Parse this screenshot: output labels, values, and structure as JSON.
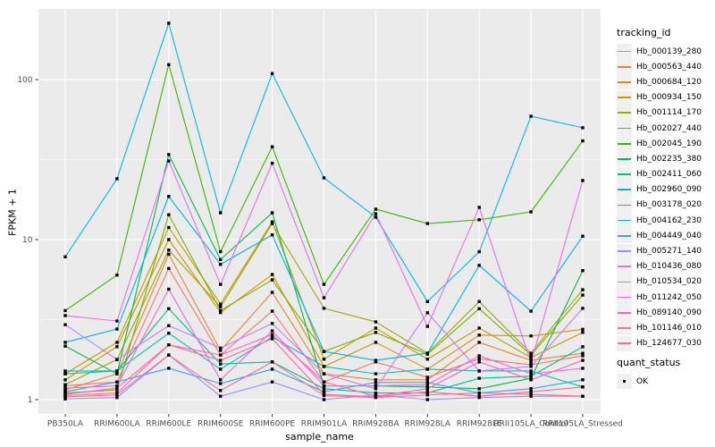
{
  "figure": {
    "xlabel": "sample_name",
    "ylabel": "FPKM + 1",
    "tracking_legend_title": "tracking_id",
    "quant_legend_title": "quant_status",
    "quant_ok_label": "OK"
  },
  "chart_data": {
    "type": "line",
    "title": "",
    "xlabel": "sample_name",
    "ylabel": "FPKM + 1",
    "yscale": "log10",
    "yticks": [
      1,
      10,
      100
    ],
    "y_minor_gridlines": [
      3.1623,
      31.623
    ],
    "ylim_approx": [
      0.82,
      280
    ],
    "grid": "white on gray panel",
    "panel_bg": "#EBEBEB",
    "legend_position": "right",
    "point_marker": "small black square (quant_status OK)",
    "categories": [
      "PB350LA",
      "RRIM600LA",
      "RRIM600LE",
      "RRIM600SE",
      "RRIM600PE",
      "RRIM901LA",
      "RRIM928BA",
      "RRIM928LA",
      "RRIM928LE",
      "RRII105LA_Control",
      "RRII105LA_Stressed"
    ],
    "series": [
      {
        "name": "Hb_000139_280",
        "color": "#F8766D",
        "values": [
          1.22,
          1.29,
          6.6,
          1.9,
          3.57,
          1.29,
          1.72,
          1.38,
          1.8,
          1.65,
          1.88
        ]
      },
      {
        "name": "Hb_000563_440",
        "color": "#EA8331",
        "values": [
          1.15,
          1.45,
          8.1,
          2.03,
          4.68,
          1.45,
          1.33,
          1.33,
          2.28,
          1.76,
          1.95
        ]
      },
      {
        "name": "Hb_000684_120",
        "color": "#D89000",
        "values": [
          1.33,
          2.14,
          10.0,
          3.5,
          6.05,
          1.61,
          2.28,
          1.55,
          2.53,
          2.5,
          2.75
        ]
      },
      {
        "name": "Hb_000934_150",
        "color": "#C09B00",
        "values": [
          1.45,
          2.28,
          11.9,
          3.96,
          12.9,
          1.79,
          2.8,
          1.79,
          2.8,
          1.83,
          2.63
        ]
      },
      {
        "name": "Hb_001114_170",
        "color": "#A3A500",
        "values": [
          1.24,
          1.78,
          8.6,
          3.8,
          12.6,
          3.72,
          3.06,
          1.95,
          4.1,
          1.95,
          4.86
        ]
      },
      {
        "name": "Hb_002027_440",
        "color": "#7CAE00",
        "values": [
          1.1,
          1.15,
          14.3,
          3.6,
          5.6,
          2.0,
          2.63,
          1.92,
          3.7,
          1.9,
          4.5
        ]
      },
      {
        "name": "Hb_002045_190",
        "color": "#39B600",
        "values": [
          3.6,
          6.0,
          124,
          8.4,
          38,
          5.25,
          15.5,
          12.6,
          13.3,
          14.9,
          41.4
        ]
      },
      {
        "name": "Hb_002235_380",
        "color": "#00BB4E",
        "values": [
          2.16,
          1.45,
          34,
          7.5,
          14.7,
          1.22,
          1.22,
          1.2,
          1.17,
          1.36,
          6.4
        ]
      },
      {
        "name": "Hb_002411_060",
        "color": "#00C087",
        "values": [
          1.45,
          1.51,
          3.7,
          1.67,
          1.72,
          1.17,
          1.1,
          1.1,
          1.36,
          1.4,
          2.14
        ]
      },
      {
        "name": "Hb_002960_090",
        "color": "#00C0B8",
        "values": [
          1.51,
          1.51,
          2.6,
          1.55,
          2.46,
          1.61,
          1.45,
          1.55,
          1.51,
          1.51,
          1.2
        ]
      },
      {
        "name": "Hb_003178_020",
        "color": "#00BAE0",
        "values": [
          7.8,
          24,
          225,
          14.7,
          109,
          24.3,
          13.8,
          4.1,
          8.4,
          59,
          50
        ]
      },
      {
        "name": "Hb_004162_230",
        "color": "#00B0F6",
        "values": [
          2.28,
          2.76,
          18.6,
          7.0,
          10.7,
          2.0,
          1.76,
          1.95,
          6.9,
          3.57,
          10.5
        ]
      },
      {
        "name": "Hb_004449_040",
        "color": "#35A2FF",
        "values": [
          1.12,
          1.29,
          1.57,
          1.26,
          1.55,
          1.12,
          1.28,
          1.28,
          1.1,
          1.17,
          1.33
        ]
      },
      {
        "name": "Hb_005271_140",
        "color": "#9590FF",
        "values": [
          1.01,
          1.03,
          1.9,
          1.05,
          1.29,
          1.0,
          1.07,
          1.0,
          1.03,
          1.05,
          1.05
        ]
      },
      {
        "name": "Hb_010436_080",
        "color": "#C77CFF",
        "values": [
          2.94,
          1.78,
          2.9,
          2.1,
          2.99,
          1.45,
          1.17,
          3.49,
          1.51,
          1.61,
          3.72
        ]
      },
      {
        "name": "Hb_010534_020",
        "color": "#E76BF3",
        "values": [
          3.35,
          3.1,
          31,
          5.25,
          30,
          4.33,
          14.5,
          2.87,
          15.9,
          1.7,
          23.4
        ]
      },
      {
        "name": "Hb_011242_050",
        "color": "#FA62DB",
        "values": [
          1.18,
          1.22,
          4.9,
          1.33,
          2.69,
          1.22,
          1.22,
          1.24,
          1.88,
          1.45,
          1.57
        ]
      },
      {
        "name": "Hb_089140_090",
        "color": "#FF62BC",
        "values": [
          1.08,
          1.18,
          2.2,
          1.9,
          2.55,
          1.29,
          1.05,
          1.17,
          1.72,
          1.33,
          1.76
        ]
      },
      {
        "name": "Hb_101146_010",
        "color": "#FF6A98",
        "values": [
          1.06,
          1.1,
          2.2,
          1.76,
          2.4,
          1.08,
          1.04,
          1.12,
          1.05,
          1.12,
          1.2
        ]
      },
      {
        "name": "Hb_124677_030",
        "color": "#FF6C91",
        "values": [
          1.04,
          1.07,
          1.9,
          1.14,
          1.72,
          1.06,
          1.03,
          1.07,
          1.1,
          1.08,
          1.05
        ]
      }
    ],
    "quant_status": {
      "title": "quant_status",
      "items": [
        "OK"
      ]
    }
  }
}
